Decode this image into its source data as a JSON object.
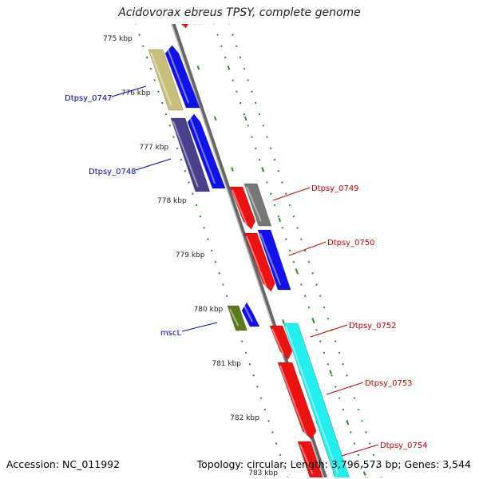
{
  "title": "Acidovorax ebreus TPSY, complete genome",
  "footer": {
    "accession": "Accession: NC_011992",
    "summary": "Topology: circular; Length: 3,796,573 bp; Genes: 3,544"
  },
  "scale_ticks": [
    "775 kbp",
    "776 kbp",
    "777 kbp",
    "778 kbp",
    "779 kbp",
    "780 kbp",
    "781 kbp",
    "782 kbp",
    "783 kbp"
  ],
  "gene_labels": {
    "left": [
      "Dtpsy_0747",
      "Dtpsy_0748",
      "mscL"
    ],
    "right": [
      "Dtpsy_0749",
      "Dtpsy_0750",
      "Dtpsy_0752",
      "Dtpsy_0753",
      "Dtpsy_0754"
    ]
  },
  "colors": {
    "label_left": "#0000cc",
    "label_right": "#cc0000",
    "backbone": "#888888",
    "dotted": "#2a8a2a"
  }
}
